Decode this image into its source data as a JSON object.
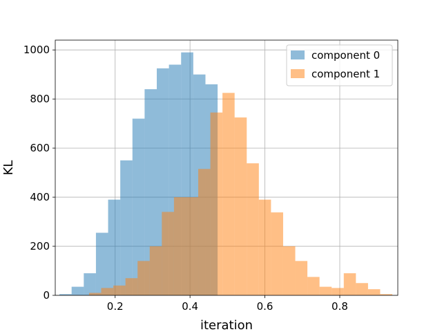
{
  "chart_data": {
    "type": "bar",
    "xlabel": "iteration",
    "ylabel": "KL",
    "xlim": [
      0.04,
      0.955
    ],
    "ylim": [
      0,
      1040
    ],
    "xticks": [
      0.2,
      0.4,
      0.6,
      0.8
    ],
    "xtick_labels": [
      "0.2",
      "0.4",
      "0.6",
      "0.8"
    ],
    "yticks": [
      0,
      200,
      400,
      600,
      800,
      1000
    ],
    "ytick_labels": [
      "0",
      "200",
      "400",
      "600",
      "800",
      "1000"
    ],
    "grid": true,
    "legend_position": "top-right",
    "series": [
      {
        "name": "component 0",
        "color": "#1f77b4",
        "opacity": 0.5,
        "bin_edges": [
          0.0512,
          0.0837,
          0.1162,
          0.1487,
          0.1812,
          0.2137,
          0.2462,
          0.2787,
          0.3112,
          0.3437,
          0.3762,
          0.4087,
          0.4412,
          0.4737,
          0.5062
        ],
        "counts": [
          5,
          35,
          90,
          255,
          390,
          550,
          720,
          840,
          925,
          940,
          990,
          900,
          860,
          0
        ]
      },
      {
        "name": "component 1",
        "color": "#ff7f0e",
        "opacity": 0.5,
        "bin_edges": [
          0.1303,
          0.1627,
          0.1951,
          0.2275,
          0.2599,
          0.2923,
          0.3247,
          0.3571,
          0.3895,
          0.4219,
          0.4543,
          0.4867,
          0.5191,
          0.5515,
          0.5839,
          0.6163,
          0.6487,
          0.6811,
          0.7135,
          0.7459,
          0.7783,
          0.8107,
          0.8431,
          0.8755,
          0.9079,
          0.9403
        ],
        "counts": [
          10,
          30,
          40,
          70,
          140,
          200,
          340,
          400,
          400,
          515,
          745,
          825,
          725,
          538,
          390,
          338,
          200,
          140,
          75,
          35,
          30,
          90,
          50,
          25,
          5
        ]
      }
    ],
    "overlay_series": {
      "name": "component 0",
      "color": "#1f77b4",
      "opacity": 0.5,
      "bin_edges": [
        0.4737,
        0.5062
      ],
      "counts": [
        0
      ]
    }
  }
}
